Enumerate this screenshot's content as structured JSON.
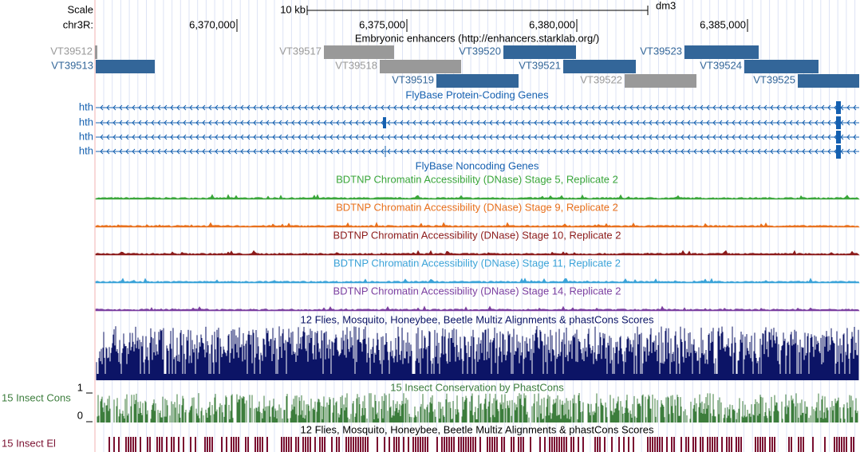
{
  "scale": {
    "label": "Scale",
    "size": "10 kb",
    "assembly": "dm3"
  },
  "position": {
    "chrom": "chr3R:",
    "ticks": [
      "6,370,000",
      "6,375,000",
      "6,380,000",
      "6,385,000"
    ]
  },
  "enhancers": {
    "title": "Embryonic enhancers (http://enhancers.starklab.org/)",
    "items": [
      {
        "name": "VT39512",
        "color": "#999999"
      },
      {
        "name": "VT39513",
        "color": "#336699"
      },
      {
        "name": "VT39517",
        "color": "#999999"
      },
      {
        "name": "VT39518",
        "color": "#999999"
      },
      {
        "name": "VT39519",
        "color": "#336699"
      },
      {
        "name": "VT39520",
        "color": "#336699"
      },
      {
        "name": "VT39521",
        "color": "#336699"
      },
      {
        "name": "VT39522",
        "color": "#999999"
      },
      {
        "name": "VT39523",
        "color": "#336699"
      },
      {
        "name": "VT39524",
        "color": "#336699"
      },
      {
        "name": "VT39525",
        "color": "#336699"
      }
    ]
  },
  "genes": {
    "title": "FlyBase Protein-Coding Genes",
    "color": "#1560b0",
    "rows": [
      "hth",
      "hth",
      "hth",
      "hth"
    ]
  },
  "noncoding": {
    "title": "FlyBase Noncoding Genes"
  },
  "dnase": [
    {
      "title": "BDTNP Chromatin Accessibility (DNase) Stage 5, Replicate 2",
      "color": "#3aa63a"
    },
    {
      "title": "BDTNP Chromatin Accessibility (DNase) Stage 9, Replicate 2",
      "color": "#e8701c"
    },
    {
      "title": "BDTNP Chromatin Accessibility (DNase) Stage 10, Replicate 2",
      "color": "#8b1a1a"
    },
    {
      "title": "BDTNP Chromatin Accessibility (DNase) Stage 11, Replicate 2",
      "color": "#3ba3d8"
    },
    {
      "title": "BDTNP Chromatin Accessibility (DNase) Stage 14, Replicate 2",
      "color": "#7b3fa0"
    }
  ],
  "multiz": {
    "title": "12 Flies, Mosquito, Honeybee, Beetle Multiz Alignments & phastCons Scores",
    "color": "#0c1466"
  },
  "cons": {
    "label": "15 Insect Cons",
    "title": "15 Insect Conservation by PhastCons",
    "color": "#3c7d3c",
    "ymax": 1,
    "ymin": 0
  },
  "elements": {
    "label": "15 Insect El",
    "title": "12 Flies, Mosquito, Honeybee, Beetle Multiz Alignments & phastCons Scores",
    "color": "#7a1030"
  }
}
